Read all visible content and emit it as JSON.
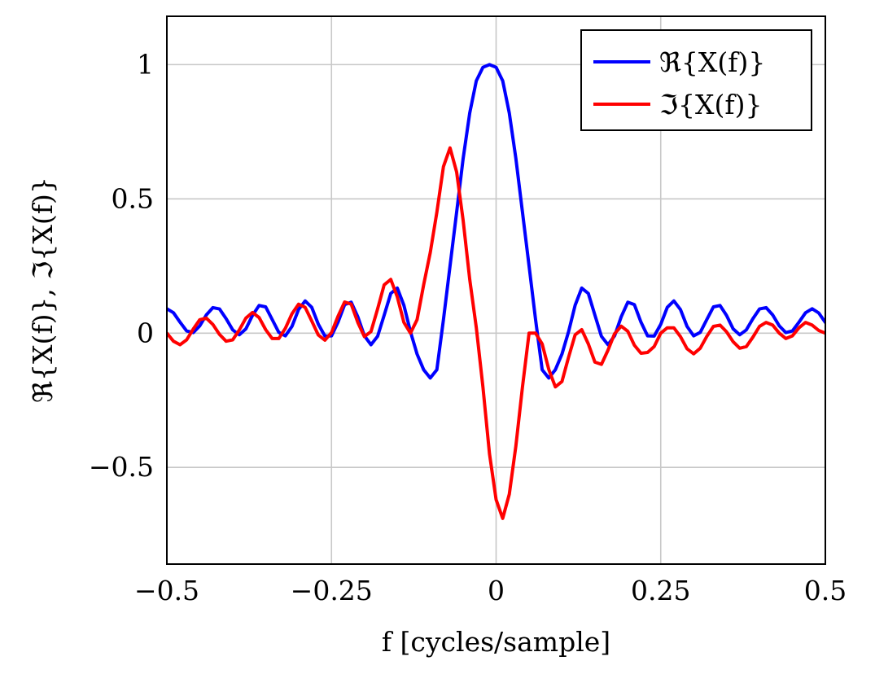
{
  "chart_data": {
    "type": "line",
    "title": "",
    "xlabel": "f [cycles/sample]",
    "ylabel": "ℜ{X(f)}, ℑ{X(f)}",
    "xlim": [
      -0.5,
      0.5
    ],
    "ylim": [
      -0.86,
      1.18
    ],
    "grid": true,
    "legend_position": "top-right",
    "x_ticks": [
      -0.5,
      -0.25,
      0,
      0.25,
      0.5
    ],
    "x_tick_labels": [
      "−0.5",
      "−0.25",
      "0",
      "0.25",
      "0.5"
    ],
    "y_ticks": [
      -0.5,
      0,
      0.5,
      1
    ],
    "y_tick_labels": [
      "−0.5",
      "0",
      "0.5",
      "1"
    ],
    "series": [
      {
        "name": "ℜ{X(f)}",
        "color": "#0000ff",
        "x": [
          -0.5,
          -0.49,
          -0.48,
          -0.47,
          -0.46,
          -0.45,
          -0.44,
          -0.43,
          -0.42,
          -0.41,
          -0.4,
          -0.39,
          -0.38,
          -0.37,
          -0.36,
          -0.35,
          -0.34,
          -0.33,
          -0.32,
          -0.31,
          -0.3,
          -0.29,
          -0.28,
          -0.27,
          -0.26,
          -0.25,
          -0.24,
          -0.23,
          -0.22,
          -0.21,
          -0.2,
          -0.19,
          -0.18,
          -0.17,
          -0.16,
          -0.15,
          -0.14,
          -0.13,
          -0.12,
          -0.11,
          -0.1,
          -0.09,
          -0.08,
          -0.07,
          -0.06,
          -0.05,
          -0.04,
          -0.03,
          -0.02,
          -0.01,
          0,
          0.01,
          0.02,
          0.03,
          0.04,
          0.05,
          0.06,
          0.07,
          0.08,
          0.09,
          0.1,
          0.11,
          0.12,
          0.13,
          0.14,
          0.15,
          0.16,
          0.17,
          0.18,
          0.19,
          0.2,
          0.21,
          0.22,
          0.23,
          0.24,
          0.25,
          0.26,
          0.27,
          0.28,
          0.29,
          0.3,
          0.31,
          0.32,
          0.33,
          0.34,
          0.35,
          0.36,
          0.37,
          0.38,
          0.39,
          0.4,
          0.41,
          0.42,
          0.43,
          0.44,
          0.45,
          0.46,
          0.47,
          0.48,
          0.49,
          0.5
        ],
        "y": [
          0.091,
          0.076,
          0.041,
          0.008,
          0.002,
          0.027,
          0.068,
          0.095,
          0.09,
          0.054,
          0.012,
          -0.006,
          0.016,
          0.066,
          0.103,
          0.098,
          0.051,
          0.003,
          -0.01,
          0.025,
          0.088,
          0.12,
          0.096,
          0.033,
          -0.011,
          -0.01,
          0.041,
          0.106,
          0.115,
          0.061,
          -0.01,
          -0.043,
          -0.012,
          0.067,
          0.148,
          0.168,
          0.104,
          0.005,
          -0.078,
          -0.136,
          -0.167,
          -0.136,
          0.05,
          0.25,
          0.45,
          0.65,
          0.82,
          0.94,
          0.99,
          1.0,
          0.99,
          0.94,
          0.82,
          0.65,
          0.45,
          0.25,
          0.05,
          -0.136,
          -0.167,
          -0.136,
          -0.078,
          0.005,
          0.104,
          0.168,
          0.148,
          0.067,
          -0.012,
          -0.043,
          -0.01,
          0.061,
          0.115,
          0.106,
          0.041,
          -0.01,
          -0.011,
          0.033,
          0.096,
          0.12,
          0.088,
          0.025,
          -0.01,
          0.003,
          0.051,
          0.098,
          0.103,
          0.066,
          0.016,
          -0.006,
          0.012,
          0.054,
          0.09,
          0.095,
          0.068,
          0.027,
          0.002,
          0.008,
          0.041,
          0.076,
          0.091,
          0.075,
          0.04
        ]
      },
      {
        "name": "ℑ{X(f)}",
        "color": "#ff0000",
        "x": [
          -0.5,
          -0.49,
          -0.48,
          -0.47,
          -0.46,
          -0.45,
          -0.44,
          -0.43,
          -0.42,
          -0.41,
          -0.4,
          -0.39,
          -0.38,
          -0.37,
          -0.36,
          -0.35,
          -0.34,
          -0.33,
          -0.32,
          -0.31,
          -0.3,
          -0.29,
          -0.28,
          -0.27,
          -0.26,
          -0.25,
          -0.24,
          -0.23,
          -0.22,
          -0.21,
          -0.2,
          -0.19,
          -0.18,
          -0.17,
          -0.16,
          -0.15,
          -0.14,
          -0.13,
          -0.12,
          -0.11,
          -0.1,
          -0.09,
          -0.08,
          -0.07,
          -0.06,
          -0.05,
          -0.04,
          -0.03,
          -0.02,
          -0.01,
          0,
          0.01,
          0.02,
          0.03,
          0.04,
          0.05,
          0.06,
          0.07,
          0.08,
          0.09,
          0.1,
          0.11,
          0.12,
          0.13,
          0.14,
          0.15,
          0.16,
          0.17,
          0.18,
          0.19,
          0.2,
          0.21,
          0.22,
          0.23,
          0.24,
          0.25,
          0.26,
          0.27,
          0.28,
          0.29,
          0.3,
          0.31,
          0.32,
          0.33,
          0.34,
          0.35,
          0.36,
          0.37,
          0.38,
          0.39,
          0.4,
          0.41,
          0.42,
          0.43,
          0.44,
          0.45,
          0.46,
          0.47,
          0.48,
          0.49,
          0.5
        ],
        "y": [
          0.0,
          -0.03,
          -0.043,
          -0.025,
          0.015,
          0.05,
          0.056,
          0.032,
          -0.005,
          -0.03,
          -0.025,
          0.012,
          0.056,
          0.077,
          0.058,
          0.013,
          -0.02,
          -0.02,
          0.018,
          0.072,
          0.108,
          0.096,
          0.045,
          -0.007,
          -0.026,
          0.002,
          0.063,
          0.116,
          0.108,
          0.04,
          -0.013,
          0.006,
          0.09,
          0.18,
          0.2,
          0.135,
          0.04,
          0.0,
          0.05,
          0.18,
          0.3,
          0.45,
          0.62,
          0.69,
          0.6,
          0.42,
          0.2,
          0.02,
          -0.2,
          -0.45,
          -0.62,
          -0.69,
          -0.6,
          -0.42,
          -0.2,
          0.0,
          0.0,
          -0.04,
          -0.135,
          -0.2,
          -0.18,
          -0.09,
          -0.006,
          0.013,
          -0.04,
          -0.108,
          -0.116,
          -0.063,
          -0.002,
          0.026,
          0.007,
          -0.045,
          -0.075,
          -0.072,
          -0.05,
          0.0,
          0.02,
          0.02,
          -0.013,
          -0.058,
          -0.077,
          -0.056,
          -0.012,
          0.025,
          0.03,
          0.005,
          -0.032,
          -0.056,
          -0.05,
          -0.015,
          0.025,
          0.04,
          0.03,
          0.0,
          -0.02,
          -0.01,
          0.02,
          0.04,
          0.03,
          0.01,
          0.0
        ]
      }
    ]
  }
}
